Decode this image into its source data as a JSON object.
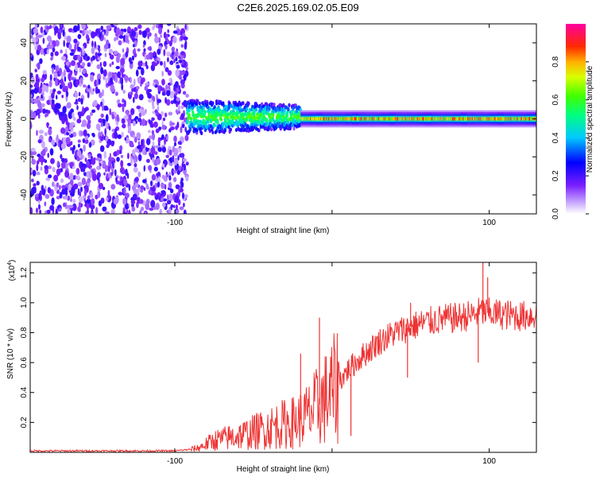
{
  "figure_title": "C2E6.2025.169.02.05.E09",
  "chart_data": [
    {
      "type": "heatmap",
      "name": "spectrogram",
      "title": "",
      "xlabel": "Height of straight line (km)",
      "ylabel": "Frequency (Hz)",
      "xlim": [
        -192,
        130
      ],
      "ylim": [
        -50,
        50
      ],
      "xticks": [
        -100,
        0,
        100
      ],
      "xtick_labels": [
        "-100",
        "",
        "100"
      ],
      "yticks": [
        -40,
        -20,
        0,
        20,
        40
      ],
      "ytick_labels": [
        "-40",
        "-20",
        "0",
        "20",
        "40"
      ],
      "colorbar": {
        "label": "Normalized spectral amplitude",
        "range": [
          0,
          1
        ],
        "ticks": [
          0.0,
          0.2,
          0.4,
          0.6,
          0.8
        ],
        "tick_labels": [
          "0.0",
          "0.2",
          "0.4",
          "0.6",
          "0.8"
        ]
      },
      "regions": [
        {
          "x_from": -192,
          "x_to": -92,
          "description_level": "noise",
          "amplitude": 0.15
        },
        {
          "x_from": -92,
          "x_to": -20,
          "freq_center": 1,
          "amplitude": 0.45
        },
        {
          "x_from": -20,
          "x_to": 130,
          "freq_center": 0,
          "amplitude": 0.6
        }
      ]
    },
    {
      "type": "line",
      "name": "snr",
      "xlabel": "Height of straight line (km)",
      "ylabel": "SNR (10 * v/v)",
      "y_scale_label": "(x10",
      "y_scale_exp": "4",
      "y_scale_close": ")",
      "xlim": [
        -192,
        130
      ],
      "ylim": [
        0,
        1.27
      ],
      "xticks": [
        -100,
        0,
        100
      ],
      "xtick_labels": [
        "-100",
        "",
        "100"
      ],
      "yticks": [
        0.2,
        0.4,
        0.6,
        0.8,
        1.0,
        1.2
      ],
      "ytick_labels": [
        "0.2",
        "0.4",
        "0.6",
        "0.8",
        "1.0",
        "1.2"
      ],
      "color": "#ee3333",
      "x": [
        -192,
        -150,
        -100,
        -90,
        -85,
        -75,
        -65,
        -55,
        -45,
        -35,
        -25,
        -20,
        -15,
        -10,
        -5,
        0,
        5,
        10,
        20,
        30,
        40,
        50,
        60,
        70,
        80,
        90,
        95,
        100,
        110,
        120,
        130
      ],
      "values": [
        0.01,
        0.01,
        0.01,
        0.02,
        0.03,
        0.08,
        0.1,
        0.12,
        0.15,
        0.18,
        0.2,
        0.22,
        0.25,
        0.3,
        0.35,
        0.4,
        0.48,
        0.55,
        0.65,
        0.74,
        0.8,
        0.84,
        0.87,
        0.89,
        0.9,
        0.92,
        0.94,
        0.93,
        0.92,
        0.91,
        0.92
      ],
      "spikes": [
        {
          "x": -8,
          "value": 0.9
        },
        {
          "x": -20,
          "value": 0.66
        },
        {
          "x": 12,
          "value": 0.11
        },
        {
          "x": 48,
          "value": 0.5
        },
        {
          "x": 50,
          "value": 1.0
        },
        {
          "x": 93,
          "value": 0.6
        },
        {
          "x": 96,
          "value": 1.27
        },
        {
          "x": 99,
          "value": 1.17
        }
      ]
    }
  ]
}
